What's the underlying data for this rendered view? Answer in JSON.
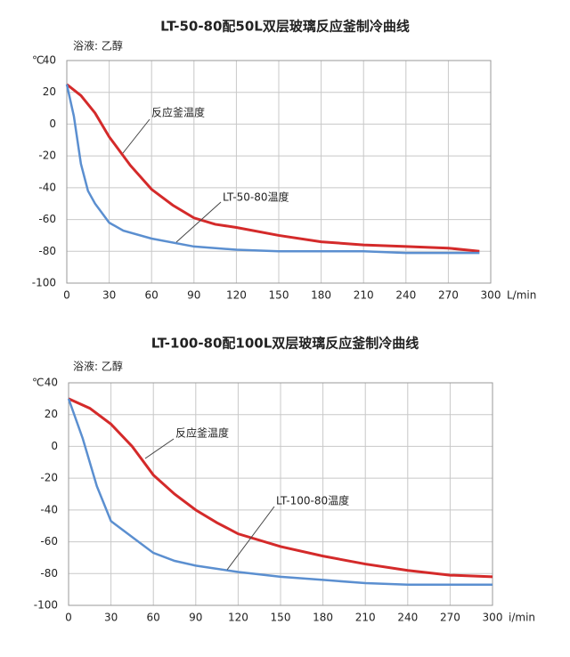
{
  "chart_data": [
    {
      "type": "line",
      "title": "LT-50-80配50L双层玻璃反应釜制冷曲线",
      "subtitle": "浴液: 乙醇",
      "y_label": "℃",
      "x_label": "L/min",
      "xlim": [
        0,
        300
      ],
      "ylim": [
        -100,
        40
      ],
      "xticks": [
        0,
        30,
        60,
        90,
        120,
        150,
        180,
        210,
        240,
        270,
        300
      ],
      "yticks": [
        -100,
        -80,
        -60,
        -40,
        -20,
        0,
        20,
        40
      ],
      "grid": true,
      "series": [
        {
          "name": "反应釜温度",
          "color": "#d42a2a",
          "x": [
            0,
            10,
            20,
            30,
            45,
            60,
            75,
            90,
            105,
            120,
            150,
            180,
            210,
            240,
            270,
            292
          ],
          "values": [
            25,
            18,
            7,
            -8,
            -26,
            -41,
            -51,
            -59,
            -63,
            -65,
            -70,
            -74,
            -76,
            -77,
            -78,
            -80
          ]
        },
        {
          "name": "LT-50-80温度",
          "color": "#5b8fd0",
          "x": [
            0,
            5,
            10,
            15,
            20,
            30,
            40,
            60,
            90,
            120,
            150,
            180,
            210,
            240,
            270,
            292
          ],
          "values": [
            25,
            5,
            -25,
            -42,
            -50,
            -62,
            -67,
            -72,
            -77,
            -79,
            -80,
            -80,
            -80,
            -81,
            -81,
            -81
          ]
        }
      ]
    },
    {
      "type": "line",
      "title": "LT-100-80配100L双层玻璃反应釜制冷曲线",
      "subtitle": "浴液: 乙醇",
      "y_label": "℃",
      "x_label": "i/min",
      "xlim": [
        0,
        300
      ],
      "ylim": [
        -100,
        40
      ],
      "xticks": [
        0,
        30,
        60,
        90,
        120,
        150,
        180,
        210,
        240,
        270,
        300
      ],
      "yticks": [
        -100,
        -80,
        -60,
        -40,
        -20,
        0,
        20,
        40
      ],
      "grid": true,
      "series": [
        {
          "name": "反应釜温度",
          "color": "#d42a2a",
          "x": [
            0,
            15,
            30,
            45,
            60,
            75,
            90,
            105,
            120,
            150,
            180,
            210,
            240,
            270,
            300
          ],
          "values": [
            30,
            24,
            14,
            0,
            -18,
            -30,
            -40,
            -48,
            -55,
            -63,
            -69,
            -74,
            -78,
            -81,
            -82
          ]
        },
        {
          "name": "LT-100-80温度",
          "color": "#5b8fd0",
          "x": [
            0,
            10,
            20,
            30,
            45,
            60,
            75,
            90,
            120,
            150,
            180,
            210,
            240,
            270,
            300
          ],
          "values": [
            30,
            5,
            -25,
            -47,
            -57,
            -67,
            -72,
            -75,
            -79,
            -82,
            -84,
            -86,
            -87,
            -87,
            -87
          ]
        }
      ]
    }
  ]
}
